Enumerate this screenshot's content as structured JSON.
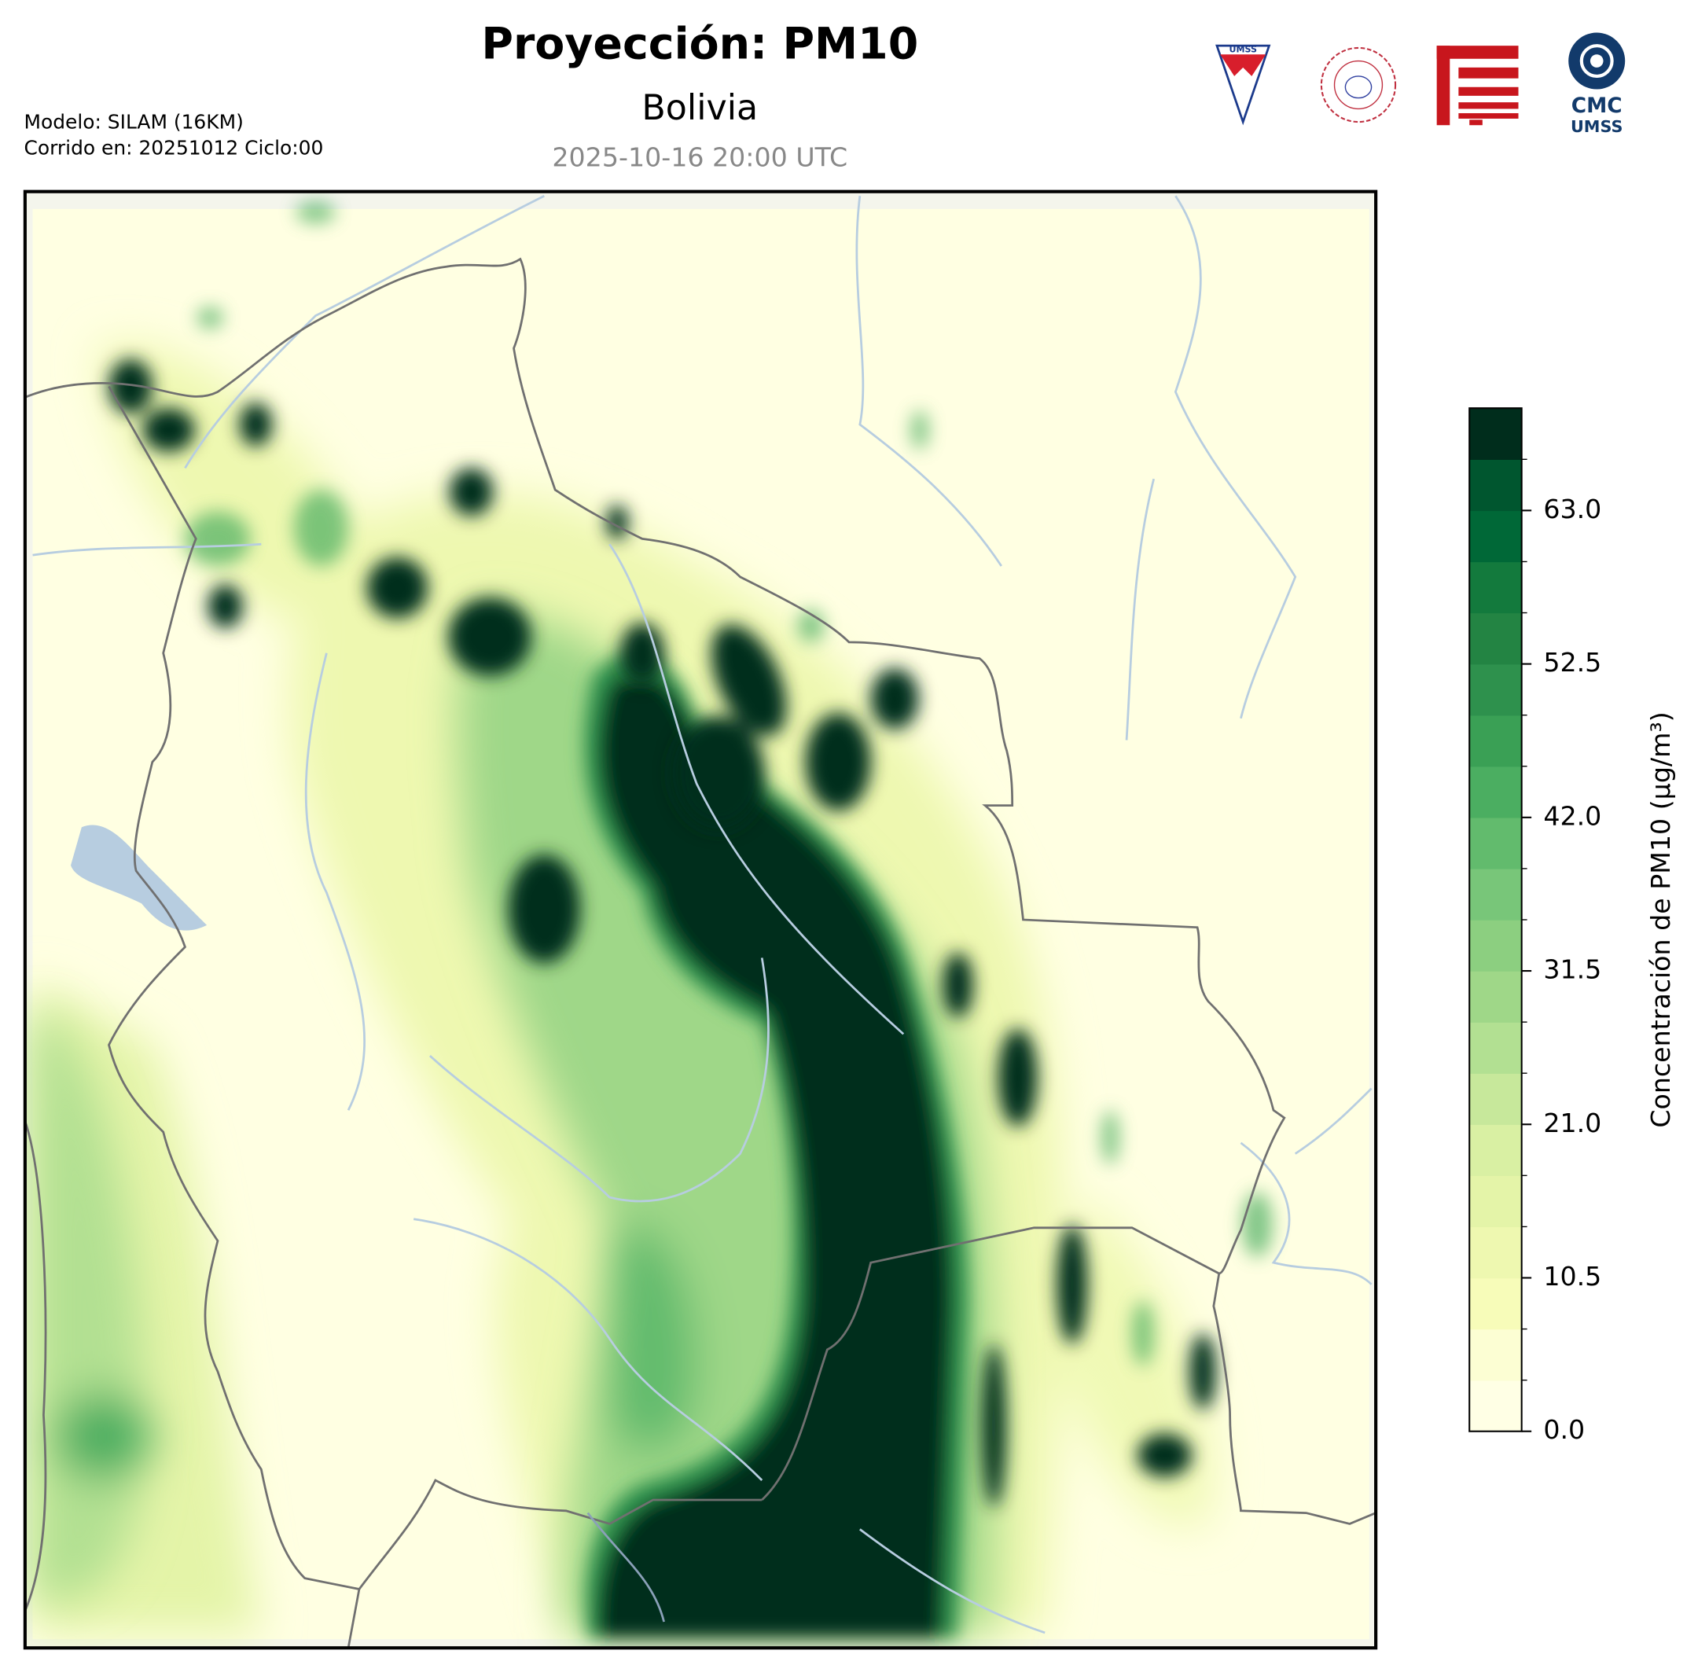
{
  "chart_data": {
    "type": "contour-map",
    "title": "Proyección: PM10",
    "subtitle": "Bolivia",
    "timestamp": "2025-10-16 20:00 UTC",
    "model_info": [
      "Modelo: SILAM (16KM)",
      "Corrido en: 20251012 Ciclo:00"
    ],
    "logos": {
      "umss": "UMSS",
      "cmc": [
        "CMC",
        "UMSS"
      ]
    },
    "colorbar": {
      "label": "Concentración de PM10 (µg/m³)",
      "lim": [
        0,
        70
      ],
      "ticks": [
        {
          "value": 0,
          "label": "0.0"
        },
        {
          "value": 10.5,
          "label": "10.5"
        },
        {
          "value": 21,
          "label": "21.0"
        },
        {
          "value": 31.5,
          "label": "31.5"
        },
        {
          "value": 42,
          "label": "42.0"
        },
        {
          "value": 52.5,
          "label": "52.5"
        },
        {
          "value": 63,
          "label": "63.0"
        }
      ],
      "colors": [
        "#ffffe5",
        "#fcfed3",
        "#f7fcb9",
        "#eef8b0",
        "#e4f4a8",
        "#d9f0a3",
        "#c7e89b",
        "#b2e092",
        "#9fd788",
        "#8ccf80",
        "#78c679",
        "#62bb6d",
        "#4bae61",
        "#3aa055",
        "#2e914d",
        "#238443",
        "#137a3d",
        "#006837",
        "#00562f",
        "#002d1c"
      ]
    }
  }
}
